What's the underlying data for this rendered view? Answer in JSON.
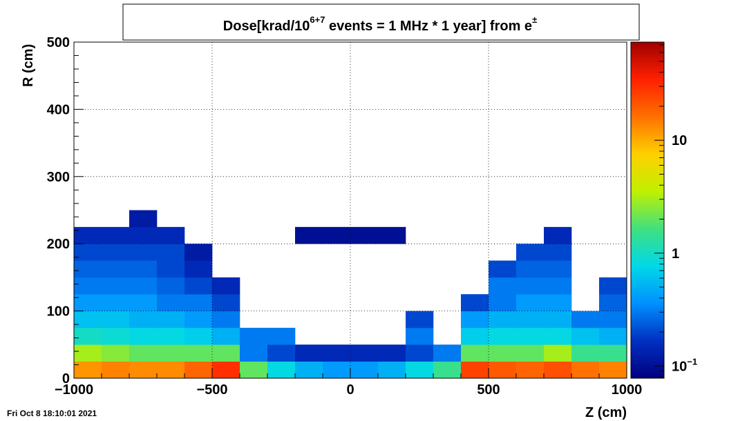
{
  "chart_data": {
    "type": "heatmap",
    "title_parts": [
      {
        "text": "Dose[krad/10",
        "sup": false
      },
      {
        "text": "6+7",
        "sup": true
      },
      {
        "text": " events = 1 MHz * 1 year] from e",
        "sup": false
      },
      {
        "text": "±",
        "sup": true
      }
    ],
    "xlabel": "Z (cm)",
    "ylabel": "R (cm)",
    "footer": "Fri Oct  8 18:10:01 2021",
    "xlim": [
      -1000,
      1000
    ],
    "ylim": [
      0,
      500
    ],
    "xticks": [
      {
        "value": -1000,
        "label": "−1000"
      },
      {
        "value": -500,
        "label": "−500"
      },
      0,
      500,
      1000
    ],
    "yticks": [
      0,
      100,
      200,
      300,
      400,
      500
    ],
    "grid": true,
    "zlim": [
      0.078,
      74
    ],
    "zlog": true,
    "zticks": [
      {
        "value": 0.1,
        "label": "10",
        "exponent": "−1"
      },
      1,
      10
    ],
    "colormap": [
      "#000080",
      "#0030c0",
      "#0090ff",
      "#00d8e8",
      "#40e080",
      "#c0f000",
      "#ffd000",
      "#ff7000",
      "#ff2000",
      "#a00000"
    ],
    "x_bins": [
      -1000,
      -900,
      -800,
      -700,
      -600,
      -500,
      -400,
      -300,
      -200,
      -100,
      0,
      100,
      200,
      300,
      400,
      500,
      600,
      700,
      800,
      900,
      1000
    ],
    "y_bins": [
      0,
      25,
      50,
      75,
      100,
      125,
      150,
      175,
      200,
      225,
      250
    ],
    "z": [
      [
        12,
        14,
        13,
        13,
        18,
        30,
        2,
        0.8,
        0.5,
        0.4,
        0.4,
        0.5,
        0.8,
        1.5,
        25,
        20,
        18,
        22,
        16,
        14
      ],
      [
        3,
        2.5,
        2,
        2,
        2,
        2,
        0.3,
        0.2,
        0.15,
        0.15,
        0.15,
        0.15,
        0.2,
        0.3,
        2,
        2,
        2,
        3,
        1.5,
        1.5
      ],
      [
        1,
        0.9,
        0.8,
        0.8,
        0.7,
        0.5,
        0.3,
        0.3,
        null,
        null,
        null,
        null,
        0.3,
        null,
        0.7,
        0.8,
        0.8,
        0.8,
        0.6,
        0.5
      ],
      [
        0.6,
        0.6,
        0.5,
        0.5,
        0.4,
        0.3,
        null,
        null,
        null,
        null,
        null,
        null,
        0.2,
        null,
        0.4,
        0.5,
        0.5,
        0.5,
        0.3,
        0.3
      ],
      [
        0.4,
        0.4,
        0.4,
        0.3,
        0.3,
        0.2,
        null,
        null,
        null,
        null,
        null,
        null,
        null,
        null,
        0.2,
        0.3,
        0.4,
        0.4,
        null,
        0.25
      ],
      [
        0.3,
        0.3,
        0.3,
        0.25,
        0.2,
        0.15,
        null,
        null,
        null,
        null,
        null,
        null,
        null,
        null,
        null,
        0.3,
        0.3,
        0.3,
        null,
        0.2
      ],
      [
        0.25,
        0.25,
        0.25,
        0.2,
        0.15,
        null,
        null,
        null,
        null,
        null,
        null,
        null,
        null,
        null,
        null,
        0.2,
        0.25,
        0.25,
        null,
        null
      ],
      [
        0.2,
        0.2,
        0.2,
        0.2,
        0.12,
        null,
        null,
        null,
        null,
        null,
        null,
        null,
        null,
        null,
        null,
        null,
        0.2,
        0.2,
        null,
        null
      ],
      [
        0.15,
        0.15,
        0.15,
        0.15,
        null,
        null,
        null,
        null,
        0.1,
        0.1,
        0.1,
        0.1,
        null,
        null,
        null,
        null,
        null,
        0.15,
        null,
        null
      ],
      [
        null,
        null,
        0.12,
        null,
        null,
        null,
        null,
        null,
        null,
        null,
        null,
        null,
        null,
        null,
        null,
        null,
        null,
        null,
        null,
        null
      ]
    ]
  }
}
